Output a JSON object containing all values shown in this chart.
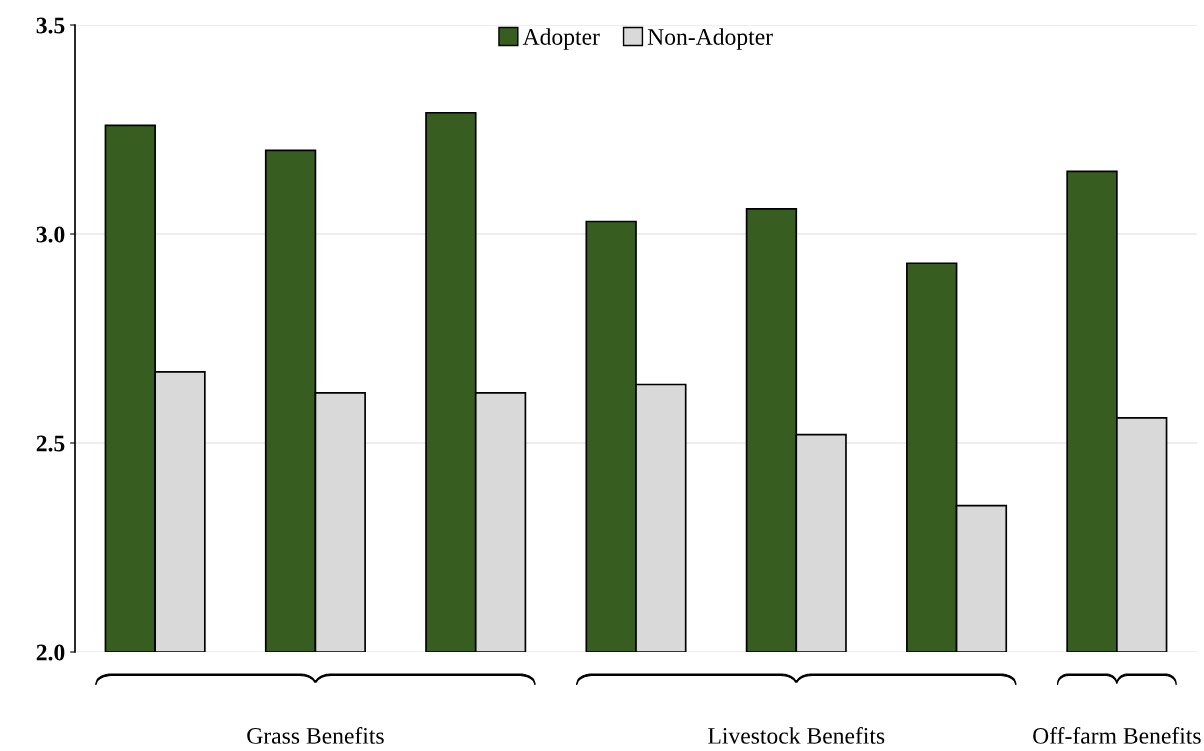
{
  "chart_data": {
    "type": "bar",
    "categories": [
      null,
      null,
      null,
      null,
      null,
      null,
      null
    ],
    "series": [
      {
        "name": "Adopter",
        "color": "#375e20",
        "values": [
          3.26,
          3.2,
          3.29,
          3.03,
          3.06,
          2.93,
          3.15
        ]
      },
      {
        "name": "Non-Adopter",
        "color": "#d9d9d9",
        "values": [
          2.67,
          2.62,
          2.62,
          2.64,
          2.52,
          2.35,
          2.56
        ]
      }
    ],
    "ylim": [
      2.0,
      3.5
    ],
    "yticks": [
      {
        "value": 2.0,
        "label": "2.0"
      },
      {
        "value": 2.5,
        "label": "2.5"
      },
      {
        "value": 3.0,
        "label": "3.0"
      },
      {
        "value": 3.5,
        "label": "3.5"
      }
    ],
    "grid": "y",
    "legend": "top",
    "annotations": [
      "Grass Benefits",
      "Livestock Benefits",
      "Off-farm Benefits"
    ]
  }
}
